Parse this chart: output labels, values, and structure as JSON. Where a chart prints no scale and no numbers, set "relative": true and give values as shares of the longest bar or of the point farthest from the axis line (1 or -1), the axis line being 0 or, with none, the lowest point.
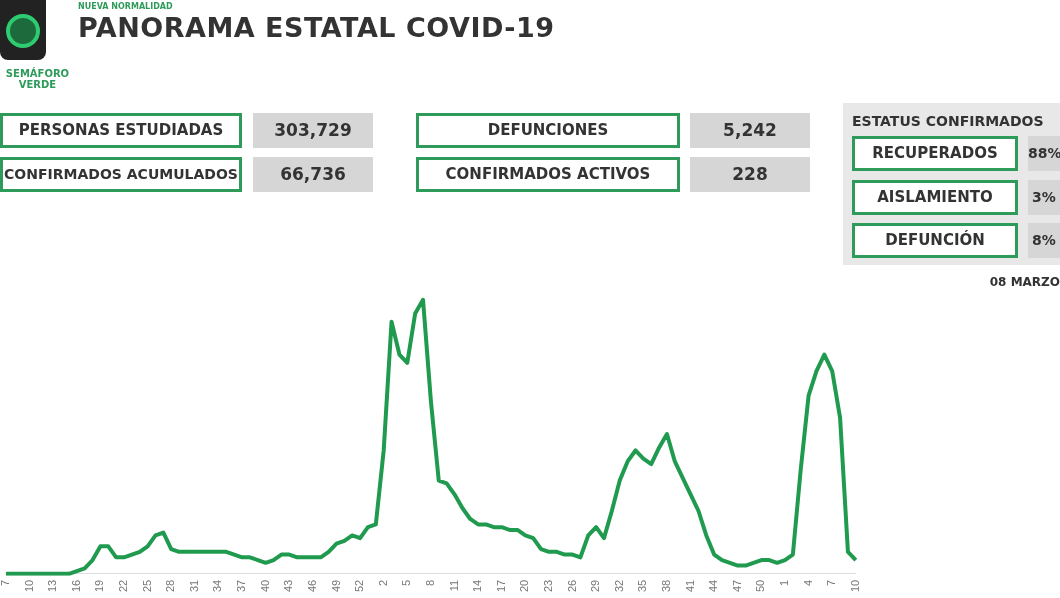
{
  "chart_data": [
    {
      "type": "other",
      "title": "PANORAMA ESTATAL COVID-19",
      "annotations": [
        "NUEVA NORMALIDAD",
        "SEMÁFORO VERDE",
        "PERSONAS ESTUDIADAS",
        "303,729",
        "CONFIRMADOS ACUMULADOS",
        "66,736",
        "DEFUNCIONES",
        "5,242",
        "CONFIRMADOS ACTIVOS",
        "228",
        "ESTATUS CONFIRMADOS",
        "RECUPERADOS",
        "88%",
        "AISLAMIENTO",
        "3%",
        "DEFUNCIÓN",
        "8%",
        "08 MARZO"
      ]
    },
    {
      "type": "line",
      "relative": true,
      "color": "#1f9a4f",
      "grid": false,
      "legend": false,
      "categories": [
        "7",
        null,
        null,
        "10",
        null,
        null,
        "13",
        null,
        null,
        "16",
        null,
        null,
        "19",
        null,
        null,
        "22",
        null,
        null,
        "25",
        null,
        null,
        "28",
        null,
        null,
        "31",
        null,
        null,
        "34",
        null,
        null,
        "37",
        null,
        null,
        "40",
        null,
        null,
        "43",
        null,
        null,
        "46",
        null,
        null,
        "49",
        null,
        null,
        "52",
        null,
        null,
        "2",
        null,
        null,
        "5",
        null,
        null,
        "8",
        null,
        null,
        "11",
        null,
        null,
        "14",
        null,
        null,
        "17",
        null,
        null,
        "20",
        null,
        null,
        "23",
        null,
        null,
        "26",
        null,
        null,
        "29",
        null,
        null,
        "32",
        null,
        null,
        "35",
        null,
        null,
        "38",
        null,
        null,
        "41",
        null,
        null,
        "44",
        null,
        null,
        "47",
        null,
        null,
        "50",
        null,
        null,
        "1",
        null,
        null,
        "4",
        null,
        null,
        "7",
        null,
        null,
        "10"
      ],
      "values": [
        0,
        0,
        0,
        0,
        0,
        0,
        0,
        0,
        0,
        0.01,
        0.02,
        0.05,
        0.1,
        0.1,
        0.06,
        0.06,
        0.07,
        0.08,
        0.1,
        0.14,
        0.15,
        0.09,
        0.08,
        0.08,
        0.08,
        0.08,
        0.08,
        0.08,
        0.08,
        0.07,
        0.06,
        0.06,
        0.05,
        0.04,
        0.05,
        0.07,
        0.07,
        0.06,
        0.06,
        0.06,
        0.06,
        0.08,
        0.11,
        0.12,
        0.14,
        0.13,
        0.17,
        0.18,
        0.45,
        0.92,
        0.8,
        0.77,
        0.95,
        1,
        0.63,
        0.34,
        0.33,
        0.29,
        0.24,
        0.2,
        0.18,
        0.18,
        0.17,
        0.17,
        0.16,
        0.16,
        0.14,
        0.13,
        0.09,
        0.08,
        0.08,
        0.07,
        0.07,
        0.06,
        0.14,
        0.17,
        0.13,
        0.23,
        0.34,
        0.41,
        0.45,
        0.42,
        0.4,
        0.46,
        0.51,
        0.41,
        0.35,
        0.29,
        0.23,
        0.14,
        0.07,
        0.05,
        0.04,
        0.03,
        0.03,
        0.04,
        0.05,
        0.05,
        0.04,
        0.05,
        0.07,
        0.38,
        0.65,
        0.74,
        0.8,
        0.74,
        0.57,
        0.08,
        0.05
      ]
    }
  ]
}
